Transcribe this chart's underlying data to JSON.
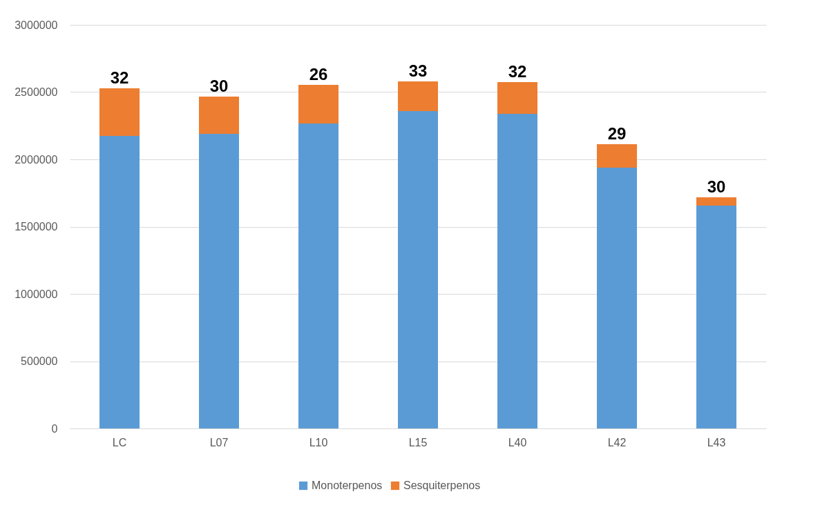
{
  "chart_data": {
    "type": "bar",
    "stacked": true,
    "categories": [
      "LC",
      "L07",
      "L10",
      "L15",
      "L40",
      "L42",
      "L43"
    ],
    "series": [
      {
        "name": "Monoterpenos",
        "color": "#5b9bd5",
        "values": [
          2174000,
          2190000,
          2267000,
          2359000,
          2338000,
          1938000,
          1656000
        ]
      },
      {
        "name": "Sesquiterpenos",
        "color": "#ed7d31",
        "values": [
          354000,
          277000,
          287000,
          220000,
          236000,
          175000,
          62000
        ]
      }
    ],
    "annotations": [
      {
        "text": "32",
        "x": "LC",
        "y": 2528000
      },
      {
        "text": "30",
        "x": "L07",
        "y": 2467000
      },
      {
        "text": "26",
        "x": "L10",
        "y": 2554000
      },
      {
        "text": "33",
        "x": "L15",
        "y": 2579000
      },
      {
        "text": "32",
        "x": "L40",
        "y": 2574000
      },
      {
        "text": "29",
        "x": "L42",
        "y": 2113000
      },
      {
        "text": "30",
        "x": "L43",
        "y": 1718000
      }
    ],
    "ylim": [
      0,
      3000000
    ],
    "yticks": [
      0,
      500000,
      1000000,
      1500000,
      2000000,
      2500000,
      3000000
    ],
    "grid": "y",
    "legend": "bottom"
  }
}
